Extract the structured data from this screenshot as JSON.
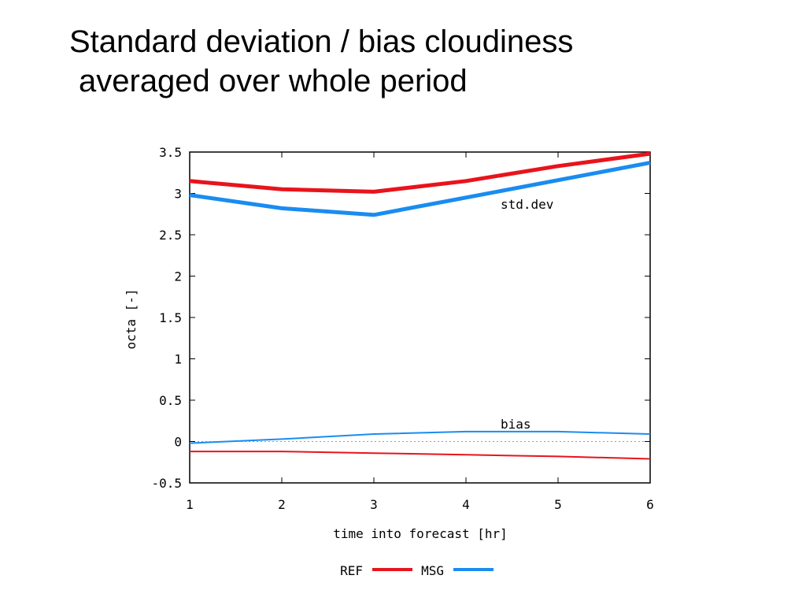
{
  "slide": {
    "title_line1": "Standard deviation / bias cloudiness",
    "title_line2": "averaged over whole period"
  },
  "chart_data": {
    "type": "line",
    "xlabel": "time into forecast [hr]",
    "ylabel": "octa [-]",
    "xlim": [
      1,
      6
    ],
    "ylim": [
      -0.5,
      3.5
    ],
    "x_ticks": [
      "1",
      "2",
      "3",
      "4",
      "5",
      "6"
    ],
    "y_ticks": [
      "3.5",
      "3",
      "2.5",
      "2",
      "1.5",
      "1",
      "0.5",
      "0",
      "-0.5"
    ],
    "grid": false,
    "zero_line": true,
    "legend_position": "bottom-center",
    "annotations": [
      {
        "text": "std.dev",
        "x": 4.55,
        "y": 2.9
      },
      {
        "text": "bias",
        "x": 4.55,
        "y": 0.22
      }
    ],
    "legend": [
      {
        "name": "REF",
        "color": "#e8141c"
      },
      {
        "name": "MSG",
        "color": "#1a8cf0"
      }
    ],
    "series": [
      {
        "name": "REF",
        "metric": "std.dev",
        "color": "#e8141c",
        "x": [
          1,
          2,
          3,
          4,
          5,
          6
        ],
        "y": [
          3.15,
          3.05,
          3.02,
          3.15,
          3.33,
          3.48
        ]
      },
      {
        "name": "MSG",
        "metric": "std.dev",
        "color": "#1a8cf0",
        "x": [
          1,
          2,
          3,
          4,
          5,
          6
        ],
        "y": [
          2.98,
          2.82,
          2.74,
          2.95,
          3.16,
          3.37
        ]
      },
      {
        "name": "REF",
        "metric": "bias",
        "color": "#e8141c",
        "x": [
          1,
          2,
          3,
          4,
          5,
          6
        ],
        "y": [
          -0.12,
          -0.12,
          -0.14,
          -0.16,
          -0.18,
          -0.21
        ]
      },
      {
        "name": "MSG",
        "metric": "bias",
        "color": "#1a8cf0",
        "x": [
          1,
          2,
          3,
          4,
          5,
          6
        ],
        "y": [
          -0.02,
          0.03,
          0.09,
          0.12,
          0.12,
          0.09
        ]
      }
    ]
  }
}
